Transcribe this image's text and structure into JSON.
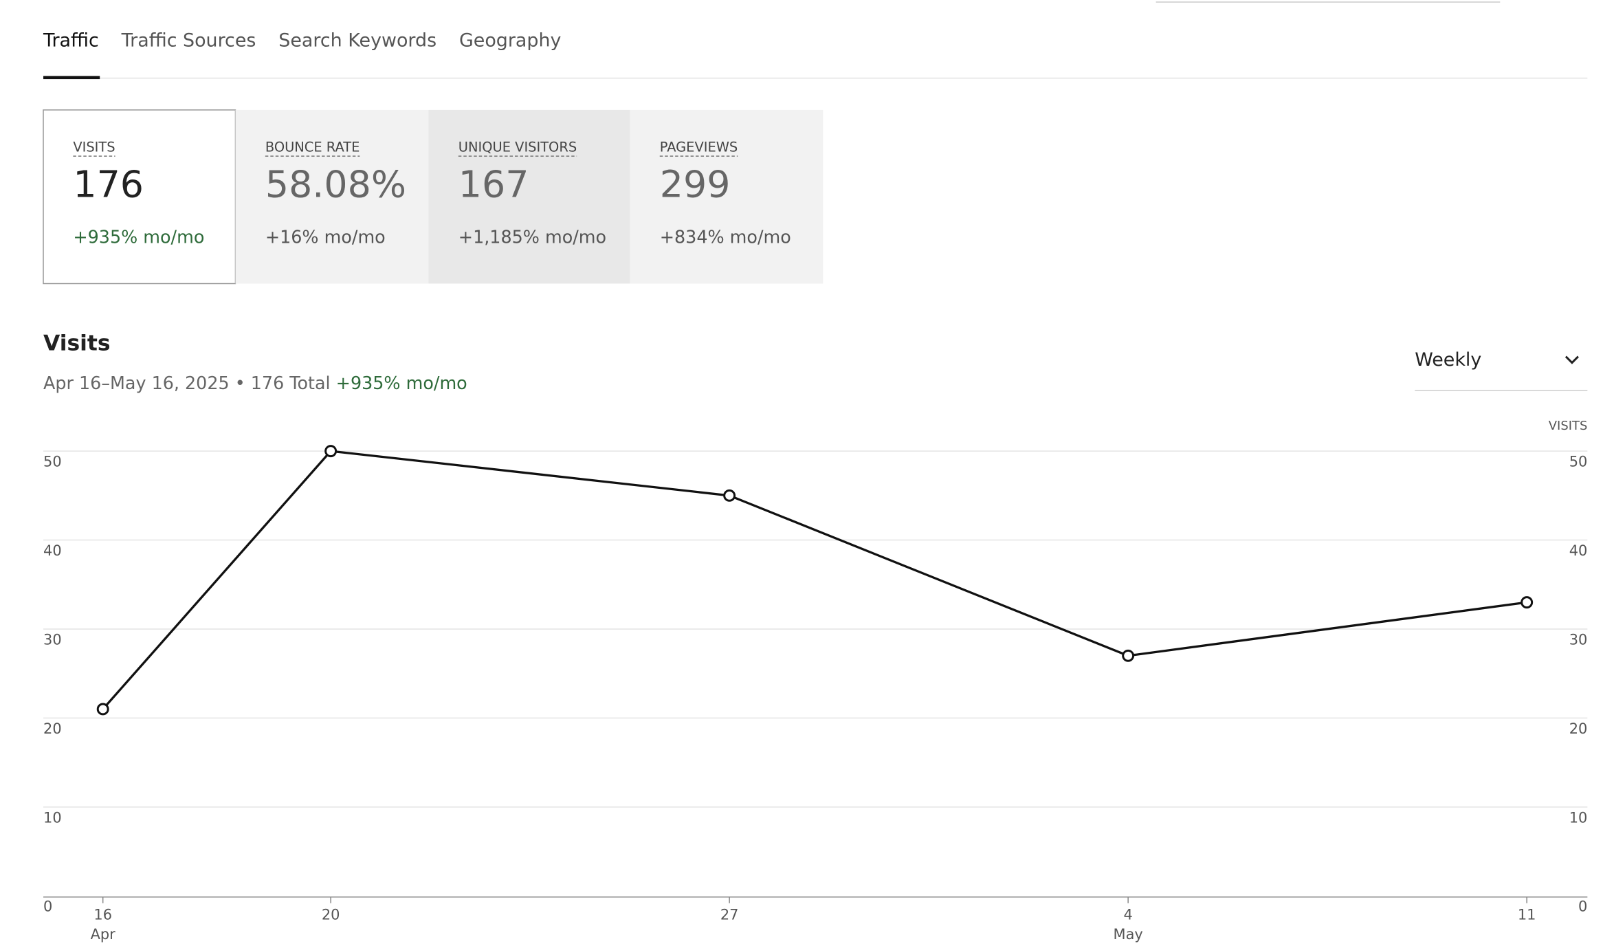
{
  "tabs": [
    "Traffic",
    "Traffic Sources",
    "Search Keywords",
    "Geography"
  ],
  "cards": [
    {
      "label": "VISITS",
      "value": "176",
      "change": "+935% mo/mo"
    },
    {
      "label": "BOUNCE RATE",
      "value": "58.08%",
      "change": "+16% mo/mo"
    },
    {
      "label": "UNIQUE VISITORS",
      "value": "167",
      "change": "+1,185% mo/mo"
    },
    {
      "label": "PAGEVIEWS",
      "value": "299",
      "change": "+834% mo/mo"
    }
  ],
  "chart_data": {
    "type": "line",
    "title": "Visits",
    "subtitle": "Apr 16–May 16, 2025 • 176 Total",
    "change": "+935% mo/mo",
    "period": "Weekly",
    "y2label": "VISITS",
    "x": [
      "Apr 16",
      "Apr 20",
      "Apr 27",
      "May 4",
      "May 11"
    ],
    "values": [
      21,
      50,
      45,
      27,
      33
    ],
    "color": "#111111",
    "xticks": [
      {
        "value": "Apr 16",
        "label": "16"
      },
      {
        "value": "Apr 20",
        "label": "20"
      },
      {
        "value": "Apr 27",
        "label": "27"
      },
      {
        "value": "May 4",
        "label": "4"
      },
      {
        "value": "May 11",
        "label": "11"
      }
    ],
    "xmonths": [
      {
        "value": "Apr 16",
        "label": "Apr"
      },
      {
        "value": "May 4",
        "label": "May"
      }
    ],
    "ylim": [
      0,
      50
    ],
    "yticks": [
      0,
      10,
      20,
      30,
      40,
      50
    ],
    "y2lim": [
      0,
      50
    ],
    "y2ticks": [
      0,
      10,
      20,
      30,
      40,
      50
    ],
    "grid": true
  }
}
